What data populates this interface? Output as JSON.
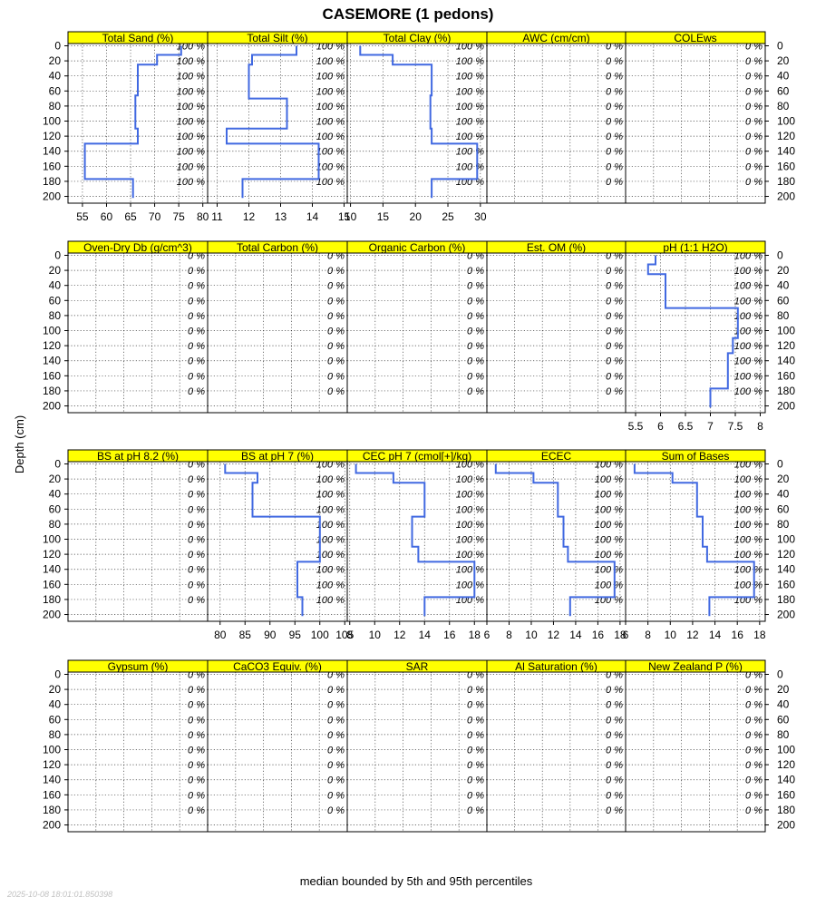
{
  "chart_data": {
    "type": "line",
    "title": "CASEMORE (1 pedons)",
    "ylabel": "Depth (cm)",
    "xlabel": "median bounded by 5th and 95th percentiles",
    "timestamp": "2025-10-08 18:01:01.850398",
    "colors": {
      "strip": "#ffff00",
      "line": "#4169e1"
    },
    "depth_axis": {
      "ylim": [
        0,
        200
      ],
      "ticks": [
        0,
        20,
        40,
        60,
        80,
        100,
        120,
        140,
        160,
        180,
        200
      ]
    },
    "pct_depths": [
      0,
      20,
      40,
      60,
      80,
      100,
      120,
      140,
      160,
      180
    ],
    "grid": "dotted",
    "panels": [
      {
        "name": "Total Sand (%)",
        "xlim": [
          52,
          81
        ],
        "xticks": [
          55,
          60,
          65,
          70,
          75,
          80
        ],
        "pct": [
          "100 %",
          "100 %",
          "100 %",
          "100 %",
          "100 %",
          "100 %",
          "100 %",
          "100 %",
          "100 %",
          "100 %"
        ],
        "profile": [
          [
            75.5,
            0
          ],
          [
            75.5,
            12
          ],
          [
            70.5,
            12
          ],
          [
            70.5,
            25
          ],
          [
            66.5,
            25
          ],
          [
            66.5,
            66
          ],
          [
            66,
            66
          ],
          [
            66,
            110
          ],
          [
            66.5,
            110
          ],
          [
            66.5,
            130
          ],
          [
            55.5,
            130
          ],
          [
            55.5,
            177
          ],
          [
            65.5,
            177
          ],
          [
            65.5,
            202
          ]
        ]
      },
      {
        "name": "Total Silt (%)",
        "xlim": [
          10.7,
          15.1
        ],
        "xticks": [
          11,
          12,
          13,
          14,
          15
        ],
        "pct": [
          "100 %",
          "100 %",
          "100 %",
          "100 %",
          "100 %",
          "100 %",
          "100 %",
          "100 %",
          "100 %",
          "100 %"
        ],
        "profile": [
          [
            13.5,
            0
          ],
          [
            13.5,
            12
          ],
          [
            12.1,
            12
          ],
          [
            12.1,
            25
          ],
          [
            12,
            25
          ],
          [
            12,
            70
          ],
          [
            13.2,
            70
          ],
          [
            13.2,
            110
          ],
          [
            11.3,
            110
          ],
          [
            11.3,
            130
          ],
          [
            14.2,
            130
          ],
          [
            14.2,
            177
          ],
          [
            11.8,
            177
          ],
          [
            11.8,
            202
          ]
        ]
      },
      {
        "name": "Total Clay (%)",
        "xlim": [
          9.5,
          31
        ],
        "xticks": [
          10,
          15,
          20,
          25,
          30
        ],
        "pct": [
          "100 %",
          "100 %",
          "100 %",
          "100 %",
          "100 %",
          "100 %",
          "100 %",
          "100 %",
          "100 %",
          "100 %"
        ],
        "profile": [
          [
            11.5,
            0
          ],
          [
            11.5,
            12
          ],
          [
            16.5,
            12
          ],
          [
            16.5,
            25
          ],
          [
            22.5,
            25
          ],
          [
            22.5,
            66
          ],
          [
            22.3,
            66
          ],
          [
            22.3,
            110
          ],
          [
            22.5,
            110
          ],
          [
            22.5,
            130
          ],
          [
            29.5,
            130
          ],
          [
            29.5,
            177
          ],
          [
            22.5,
            177
          ],
          [
            22.5,
            202
          ]
        ]
      },
      {
        "name": "AWC (cm/cm)",
        "xlim": [
          0,
          1
        ],
        "xticks": [],
        "pct": [
          "0 %",
          "0 %",
          "0 %",
          "0 %",
          "0 %",
          "0 %",
          "0 %",
          "0 %",
          "0 %",
          "0 %"
        ],
        "profile": []
      },
      {
        "name": "COLEws",
        "xlim": [
          0,
          1
        ],
        "xticks": [],
        "pct": [
          "0 %",
          "0 %",
          "0 %",
          "0 %",
          "0 %",
          "0 %",
          "0 %",
          "0 %",
          "0 %",
          "0 %"
        ],
        "profile": []
      },
      {
        "name": "Oven-Dry Db (g/cm^3)",
        "xlim": [
          0,
          1
        ],
        "xticks": [],
        "pct": [
          "0 %",
          "0 %",
          "0 %",
          "0 %",
          "0 %",
          "0 %",
          "0 %",
          "0 %",
          "0 %",
          "0 %"
        ],
        "profile": []
      },
      {
        "name": "Total Carbon (%)",
        "xlim": [
          0,
          1
        ],
        "xticks": [],
        "pct": [
          "0 %",
          "0 %",
          "0 %",
          "0 %",
          "0 %",
          "0 %",
          "0 %",
          "0 %",
          "0 %",
          "0 %"
        ],
        "profile": []
      },
      {
        "name": "Organic Carbon (%)",
        "xlim": [
          0,
          1
        ],
        "xticks": [],
        "pct": [
          "0 %",
          "0 %",
          "0 %",
          "0 %",
          "0 %",
          "0 %",
          "0 %",
          "0 %",
          "0 %",
          "0 %"
        ],
        "profile": []
      },
      {
        "name": "Est. OM (%)",
        "xlim": [
          0,
          1
        ],
        "xticks": [],
        "pct": [
          "0 %",
          "0 %",
          "0 %",
          "0 %",
          "0 %",
          "0 %",
          "0 %",
          "0 %",
          "0 %",
          "0 %"
        ],
        "profile": []
      },
      {
        "name": "pH (1:1 H2O)",
        "xlim": [
          5.3,
          8.1
        ],
        "xticks": [
          5.5,
          6.0,
          6.5,
          7.0,
          7.5,
          8.0
        ],
        "pct": [
          "100 %",
          "100 %",
          "100 %",
          "100 %",
          "100 %",
          "100 %",
          "100 %",
          "100 %",
          "100 %",
          "100 %"
        ],
        "profile": [
          [
            5.9,
            0
          ],
          [
            5.9,
            12
          ],
          [
            5.75,
            12
          ],
          [
            5.75,
            25
          ],
          [
            6.1,
            25
          ],
          [
            6.1,
            70
          ],
          [
            7.55,
            70
          ],
          [
            7.55,
            110
          ],
          [
            7.45,
            110
          ],
          [
            7.45,
            130
          ],
          [
            7.35,
            130
          ],
          [
            7.35,
            177
          ],
          [
            7.0,
            177
          ],
          [
            7.0,
            202
          ]
        ]
      },
      {
        "name": "BS at pH 8.2 (%)",
        "xlim": [
          0,
          1
        ],
        "xticks": [],
        "pct": [
          "0 %",
          "0 %",
          "0 %",
          "0 %",
          "0 %",
          "0 %",
          "0 %",
          "0 %",
          "0 %",
          "0 %"
        ],
        "profile": []
      },
      {
        "name": "BS at pH 7 (%)",
        "xlim": [
          77.5,
          105.5
        ],
        "xticks": [
          80,
          85,
          90,
          95,
          100,
          105
        ],
        "pct": [
          "100 %",
          "100 %",
          "100 %",
          "100 %",
          "100 %",
          "100 %",
          "100 %",
          "100 %",
          "100 %",
          "100 %"
        ],
        "profile": [
          [
            81,
            0
          ],
          [
            81,
            12
          ],
          [
            87.5,
            12
          ],
          [
            87.5,
            25
          ],
          [
            86.5,
            25
          ],
          [
            86.5,
            70
          ],
          [
            100,
            70
          ],
          [
            100,
            130
          ],
          [
            95.5,
            130
          ],
          [
            95.5,
            177
          ],
          [
            96.5,
            177
          ],
          [
            96.5,
            202
          ]
        ]
      },
      {
        "name": "CEC pH 7 (cmol[+]/kg)",
        "xlim": [
          7.8,
          19
        ],
        "xticks": [
          8,
          10,
          12,
          14,
          16,
          18
        ],
        "pct": [
          "100 %",
          "100 %",
          "100 %",
          "100 %",
          "100 %",
          "100 %",
          "100 %",
          "100 %",
          "100 %",
          "100 %"
        ],
        "profile": [
          [
            8.5,
            0
          ],
          [
            8.5,
            12
          ],
          [
            11.5,
            12
          ],
          [
            11.5,
            25
          ],
          [
            14,
            25
          ],
          [
            14,
            70
          ],
          [
            13,
            70
          ],
          [
            13,
            110
          ],
          [
            13.5,
            110
          ],
          [
            13.5,
            130
          ],
          [
            18,
            130
          ],
          [
            18,
            177
          ],
          [
            14,
            177
          ],
          [
            14,
            202
          ]
        ]
      },
      {
        "name": "ECEC",
        "xlim": [
          6,
          18.5
        ],
        "xticks": [
          6,
          8,
          10,
          12,
          14,
          16,
          18
        ],
        "pct": [
          "100 %",
          "100 %",
          "100 %",
          "100 %",
          "100 %",
          "100 %",
          "100 %",
          "100 %",
          "100 %",
          "100 %"
        ],
        "profile": [
          [
            6.8,
            0
          ],
          [
            6.8,
            12
          ],
          [
            10.2,
            12
          ],
          [
            10.2,
            25
          ],
          [
            12.4,
            25
          ],
          [
            12.4,
            70
          ],
          [
            12.9,
            70
          ],
          [
            12.9,
            110
          ],
          [
            13.3,
            110
          ],
          [
            13.3,
            130
          ],
          [
            17.5,
            130
          ],
          [
            17.5,
            177
          ],
          [
            13.5,
            177
          ],
          [
            13.5,
            202
          ]
        ]
      },
      {
        "name": "Sum of Bases",
        "xlim": [
          6,
          18.5
        ],
        "xticks": [
          6,
          8,
          10,
          12,
          14,
          16,
          18
        ],
        "pct": [
          "100 %",
          "100 %",
          "100 %",
          "100 %",
          "100 %",
          "100 %",
          "100 %",
          "100 %",
          "100 %",
          "100 %"
        ],
        "profile": [
          [
            6.8,
            0
          ],
          [
            6.8,
            12
          ],
          [
            10.2,
            12
          ],
          [
            10.2,
            25
          ],
          [
            12.4,
            25
          ],
          [
            12.4,
            70
          ],
          [
            12.9,
            70
          ],
          [
            12.9,
            110
          ],
          [
            13.3,
            110
          ],
          [
            13.3,
            130
          ],
          [
            17.5,
            130
          ],
          [
            17.5,
            177
          ],
          [
            13.5,
            177
          ],
          [
            13.5,
            202
          ]
        ]
      },
      {
        "name": "Gypsum (%)",
        "xlim": [
          0,
          1
        ],
        "xticks": [],
        "pct": [
          "0 %",
          "0 %",
          "0 %",
          "0 %",
          "0 %",
          "0 %",
          "0 %",
          "0 %",
          "0 %",
          "0 %"
        ],
        "profile": []
      },
      {
        "name": "CaCO3 Equiv. (%)",
        "xlim": [
          0,
          1
        ],
        "xticks": [],
        "pct": [
          "0 %",
          "0 %",
          "0 %",
          "0 %",
          "0 %",
          "0 %",
          "0 %",
          "0 %",
          "0 %",
          "0 %"
        ],
        "profile": []
      },
      {
        "name": "SAR",
        "xlim": [
          0,
          1
        ],
        "xticks": [],
        "pct": [
          "0 %",
          "0 %",
          "0 %",
          "0 %",
          "0 %",
          "0 %",
          "0 %",
          "0 %",
          "0 %",
          "0 %"
        ],
        "profile": []
      },
      {
        "name": "Al Saturation (%)",
        "xlim": [
          0,
          1
        ],
        "xticks": [],
        "pct": [
          "0 %",
          "0 %",
          "0 %",
          "0 %",
          "0 %",
          "0 %",
          "0 %",
          "0 %",
          "0 %",
          "0 %"
        ],
        "profile": []
      },
      {
        "name": "New Zealand P (%)",
        "xlim": [
          0,
          1
        ],
        "xticks": [],
        "pct": [
          "0 %",
          "0 %",
          "0 %",
          "0 %",
          "0 %",
          "0 %",
          "0 %",
          "0 %",
          "0 %",
          "0 %"
        ],
        "profile": []
      }
    ]
  }
}
